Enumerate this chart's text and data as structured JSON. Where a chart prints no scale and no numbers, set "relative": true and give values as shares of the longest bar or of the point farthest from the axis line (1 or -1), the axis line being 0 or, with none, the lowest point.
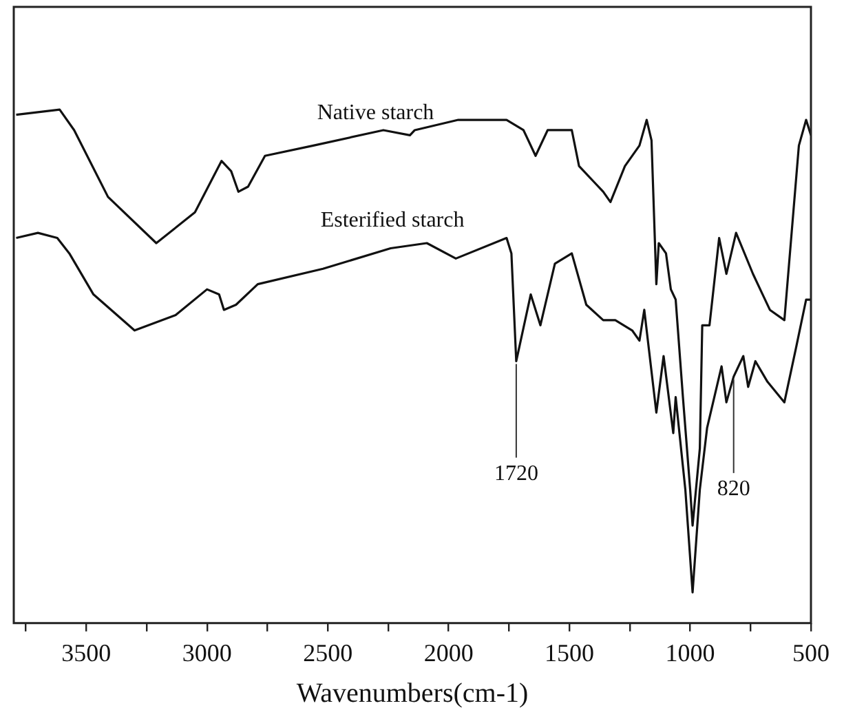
{
  "chart_data": {
    "type": "line",
    "xlabel": "Wavenumbers(cm-1)",
    "relative": true,
    "xlim": [
      3800,
      500
    ],
    "xticks": [
      {
        "value": 3750,
        "label": null
      },
      3500,
      {
        "value": 3250,
        "label": null
      },
      3000,
      {
        "value": 2750,
        "label": null
      },
      2500,
      {
        "value": 2250,
        "label": null
      },
      2000,
      {
        "value": 1750,
        "label": null
      },
      1500,
      {
        "value": 1250,
        "label": null
      },
      1000,
      {
        "value": 750,
        "label": null
      },
      500
    ],
    "grid": false,
    "legend": false,
    "marker": "none",
    "line_style": "solid",
    "annotations": [
      {
        "text": "1720",
        "x": 1720,
        "y": 0.51
      },
      {
        "text": "820",
        "x": 820,
        "y": 0.48
      }
    ],
    "series": [
      {
        "name": "Native starch",
        "color": "#111111",
        "x": [
          3790,
          3610,
          3550,
          3410,
          3210,
          3050,
          2940,
          2900,
          2870,
          2830,
          2760,
          2560,
          2270,
          2160,
          2140,
          1960,
          1760,
          1690,
          1640,
          1590,
          1490,
          1460,
          1400,
          1360,
          1330,
          1270,
          1210,
          1180,
          1160,
          1140,
          1130,
          1100,
          1080,
          1060,
          1030,
          1000,
          990,
          960,
          950,
          920,
          880,
          850,
          810,
          740,
          700,
          670,
          610,
          550,
          520,
          500
        ],
        "values": [
          0.99,
          1.0,
          0.96,
          0.83,
          0.74,
          0.8,
          0.9,
          0.88,
          0.84,
          0.85,
          0.91,
          0.93,
          0.96,
          0.95,
          0.96,
          0.98,
          0.98,
          0.96,
          0.91,
          0.96,
          0.96,
          0.89,
          0.86,
          0.84,
          0.82,
          0.89,
          0.93,
          0.98,
          0.94,
          0.66,
          0.74,
          0.72,
          0.65,
          0.63,
          0.44,
          0.26,
          0.19,
          0.34,
          0.58,
          0.58,
          0.75,
          0.68,
          0.76,
          0.68,
          0.64,
          0.61,
          0.59,
          0.93,
          0.98,
          0.95
        ]
      },
      {
        "name": "Esterified starch",
        "color": "#111111",
        "x": [
          3790,
          3700,
          3620,
          3570,
          3470,
          3300,
          3130,
          3000,
          2950,
          2930,
          2880,
          2790,
          2520,
          2240,
          2090,
          1970,
          1760,
          1740,
          1720,
          1660,
          1620,
          1560,
          1490,
          1430,
          1360,
          1310,
          1240,
          1210,
          1190,
          1140,
          1110,
          1070,
          1060,
          1020,
          990,
          960,
          930,
          870,
          850,
          820,
          780,
          760,
          730,
          680,
          610,
          560,
          520,
          500
        ],
        "values": [
          0.75,
          0.76,
          0.75,
          0.72,
          0.64,
          0.57,
          0.6,
          0.65,
          0.64,
          0.61,
          0.62,
          0.66,
          0.69,
          0.73,
          0.74,
          0.71,
          0.75,
          0.72,
          0.51,
          0.64,
          0.58,
          0.7,
          0.72,
          0.62,
          0.59,
          0.59,
          0.57,
          0.55,
          0.61,
          0.41,
          0.52,
          0.37,
          0.44,
          0.26,
          0.06,
          0.26,
          0.38,
          0.5,
          0.43,
          0.48,
          0.52,
          0.46,
          0.51,
          0.47,
          0.43,
          0.54,
          0.63,
          0.63
        ]
      }
    ]
  }
}
